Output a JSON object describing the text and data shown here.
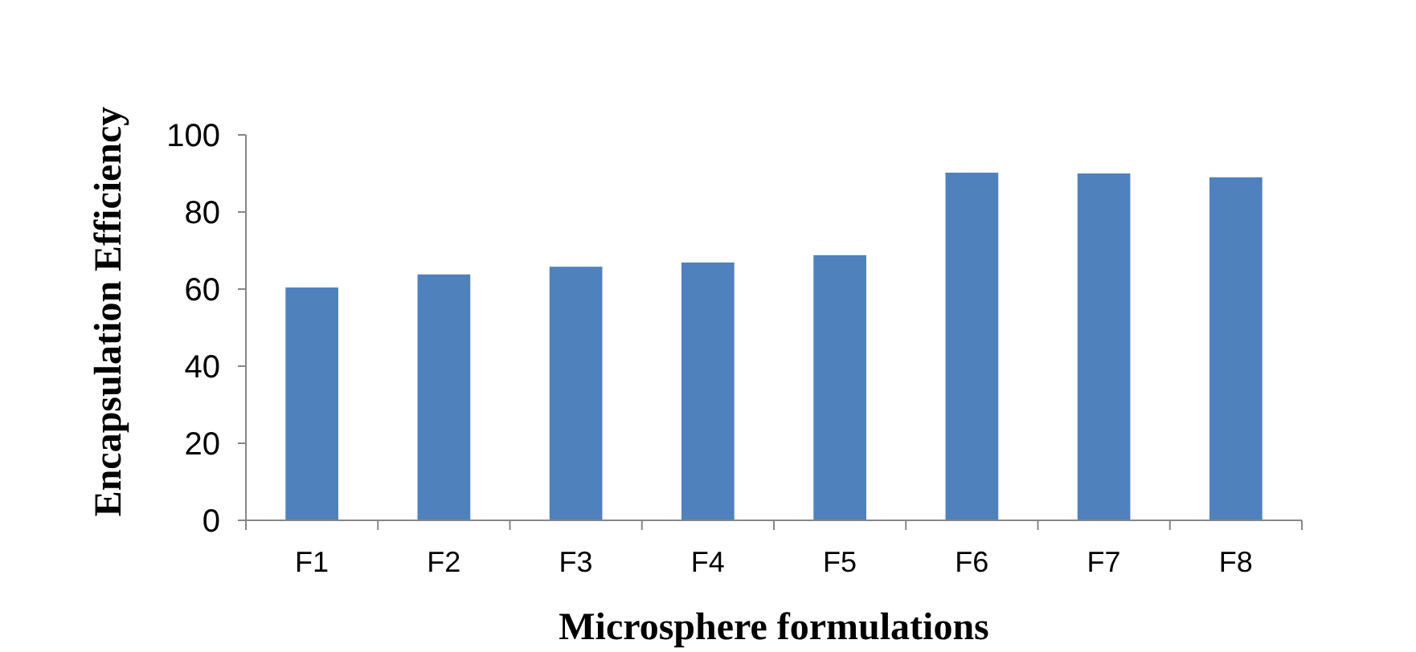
{
  "chart_data": {
    "type": "bar",
    "xlabel": "Microsphere  formulations",
    "ylabel": "Encapsulation Efficiency",
    "categories": [
      "F1",
      "F2",
      "F3",
      "F4",
      "F5",
      "F6",
      "F7",
      "F8"
    ],
    "values": [
      60.4,
      63.8,
      65.8,
      66.9,
      68.8,
      90.2,
      90,
      89
    ],
    "color": "#4f81bd",
    "ylim": [
      0,
      100
    ],
    "yticks": [
      0,
      20,
      40,
      60,
      80,
      100
    ],
    "grid": false
  }
}
